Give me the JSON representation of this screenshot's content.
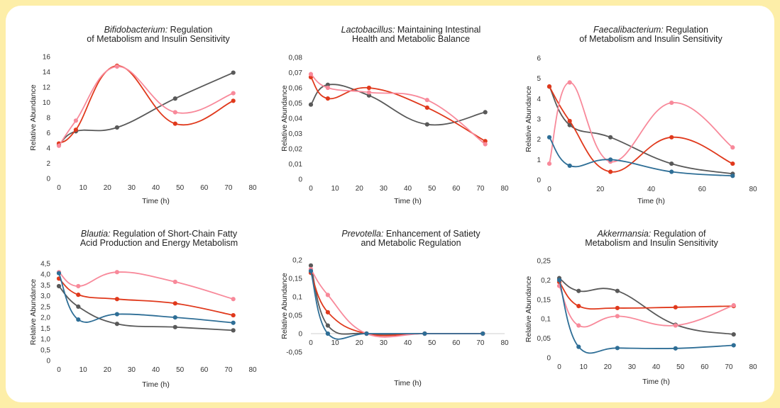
{
  "colors": {
    "gray": "#595959",
    "red": "#e0391c",
    "pink": "#f8899a",
    "blue": "#2e6e96",
    "background": "#fdeea8"
  },
  "chart_data": [
    {
      "type": "line",
      "title_italic": "Bifidobacterium:",
      "title_rest": " Regulation",
      "title_line2": "of Metabolism and Insulin Sensitivity",
      "xlabel": "Time (h)",
      "ylabel": "Relative Abundance",
      "xlim": [
        0,
        80
      ],
      "ylim": [
        0,
        16
      ],
      "xticks": [
        "0",
        "10",
        "20",
        "30",
        "40",
        "50",
        "60",
        "70",
        "80"
      ],
      "yticks": [
        "0",
        "2",
        "4",
        "6",
        "8",
        "10",
        "12",
        "14",
        "16"
      ],
      "series": [
        {
          "color": "gray",
          "x": [
            0,
            7,
            24,
            48,
            72
          ],
          "y": [
            4.4,
            6.2,
            6.7,
            10.5,
            13.9
          ]
        },
        {
          "color": "red",
          "x": [
            0,
            7,
            24,
            48,
            72
          ],
          "y": [
            4.6,
            6.4,
            14.8,
            7.2,
            10.2
          ]
        },
        {
          "color": "pink",
          "x": [
            0,
            7,
            24,
            48,
            72
          ],
          "y": [
            4.3,
            7.6,
            14.7,
            8.7,
            11.2
          ]
        }
      ]
    },
    {
      "type": "line",
      "title_italic": "Lactobacillus:",
      "title_rest": " Maintaining Intestinal",
      "title_line2": "Health and Metabolic Balance",
      "xlabel": "Time (h)",
      "ylabel": "Relative Abundance",
      "xlim": [
        0,
        80
      ],
      "ylim": [
        0,
        0.08
      ],
      "xticks": [
        "0",
        "10",
        "20",
        "30",
        "40",
        "50",
        "60",
        "70",
        "80"
      ],
      "yticks": [
        "0",
        "0,01",
        "0,02",
        "0,03",
        "0,04",
        "0,05",
        "0,06",
        "0,07",
        "0,08"
      ],
      "series": [
        {
          "color": "gray",
          "x": [
            0,
            7,
            24,
            48,
            72
          ],
          "y": [
            0.049,
            0.062,
            0.055,
            0.036,
            0.044
          ]
        },
        {
          "color": "red",
          "x": [
            0,
            7,
            24,
            48,
            72
          ],
          "y": [
            0.067,
            0.053,
            0.06,
            0.047,
            0.025
          ]
        },
        {
          "color": "pink",
          "x": [
            0,
            7,
            24,
            48,
            72
          ],
          "y": [
            0.069,
            0.06,
            0.057,
            0.052,
            0.023
          ]
        }
      ]
    },
    {
      "type": "line",
      "title_italic": "Faecalibacterium:",
      "title_rest": " Regulation",
      "title_line2": "of Metabolism and Insulin Sensitivity",
      "xlabel": "Time (h)",
      "ylabel": "Relative Abundance",
      "xlim": [
        0,
        80
      ],
      "ylim": [
        0,
        6
      ],
      "xticks": [
        "0",
        "20",
        "40",
        "60",
        "80"
      ],
      "yticks": [
        "0",
        "1",
        "2",
        "3",
        "4",
        "5",
        "6"
      ],
      "series": [
        {
          "color": "gray",
          "x": [
            0,
            8,
            24,
            48,
            72
          ],
          "y": [
            4.6,
            2.7,
            2.1,
            0.8,
            0.3
          ]
        },
        {
          "color": "red",
          "x": [
            0,
            8,
            24,
            48,
            72
          ],
          "y": [
            4.6,
            2.9,
            0.4,
            2.1,
            0.8
          ]
        },
        {
          "color": "pink",
          "x": [
            0,
            8,
            24,
            48,
            72
          ],
          "y": [
            0.8,
            4.8,
            0.9,
            3.8,
            1.6
          ]
        },
        {
          "color": "blue",
          "x": [
            0,
            8,
            24,
            48,
            72
          ],
          "y": [
            2.1,
            0.7,
            1.0,
            0.4,
            0.2
          ]
        }
      ]
    },
    {
      "type": "line",
      "title_italic": "Blautia:",
      "title_rest": " Regulation of Short-Chain Fatty",
      "title_line2": "Acid Production and Energy Metabolism",
      "xlabel": "Time (h)",
      "ylabel": "Relative Abundance",
      "xlim": [
        0,
        80
      ],
      "ylim": [
        0,
        4.5
      ],
      "xticks": [
        "0",
        "10",
        "20",
        "30",
        "40",
        "50",
        "60",
        "70",
        "80"
      ],
      "yticks": [
        "0",
        "0,5",
        "1,0",
        "1,5",
        "2,0",
        "2,5",
        "3,0",
        "3,5",
        "4,0",
        "4,5"
      ],
      "series": [
        {
          "color": "gray",
          "x": [
            0,
            8,
            24,
            48,
            72
          ],
          "y": [
            3.45,
            2.5,
            1.7,
            1.55,
            1.4
          ]
        },
        {
          "color": "red",
          "x": [
            0,
            8,
            24,
            48,
            72
          ],
          "y": [
            3.8,
            3.05,
            2.85,
            2.65,
            2.1
          ]
        },
        {
          "color": "pink",
          "x": [
            0,
            8,
            24,
            48,
            72
          ],
          "y": [
            4.1,
            3.45,
            4.1,
            3.65,
            2.85
          ]
        },
        {
          "color": "blue",
          "x": [
            0,
            8,
            24,
            48,
            72
          ],
          "y": [
            4.05,
            1.9,
            2.15,
            2.0,
            1.75
          ]
        }
      ]
    },
    {
      "type": "line",
      "title_italic": "Prevotella:",
      "title_rest": " Enhancement of Satiety",
      "title_line2": "and Metabolic Regulation",
      "xlabel": "Time (h)",
      "ylabel": "Relative Abundance",
      "xlim": [
        0,
        80
      ],
      "ylim": [
        -0.05,
        0.2
      ],
      "xticks": [
        "0",
        "10",
        "20",
        "30",
        "40",
        "50",
        "60",
        "70",
        "80"
      ],
      "yticks": [
        "-0,05",
        "0",
        "0,05",
        "0,1",
        "0,15",
        "0,2"
      ],
      "series": [
        {
          "color": "gray",
          "x": [
            0,
            7,
            23,
            47,
            71
          ],
          "y": [
            0.185,
            0.022,
            0.0,
            0.0,
            0.0
          ]
        },
        {
          "color": "red",
          "x": [
            0,
            7,
            23,
            47,
            71
          ],
          "y": [
            0.165,
            0.058,
            0.0,
            0.0,
            0.0
          ]
        },
        {
          "color": "pink",
          "x": [
            0,
            7,
            23,
            47,
            71
          ],
          "y": [
            0.175,
            0.105,
            0.0,
            0.0,
            0.0
          ]
        },
        {
          "color": "blue",
          "x": [
            0,
            7,
            23,
            47,
            71
          ],
          "y": [
            0.17,
            0.0,
            0.0,
            0.0,
            0.0
          ]
        }
      ]
    },
    {
      "type": "line",
      "title_italic": "Akkermansia:",
      "title_rest": " Regulation of",
      "title_line2": "Metabolism and Insulin Sensitivity",
      "xlabel": "Time (h)",
      "ylabel": "Relative Abundance",
      "xlim": [
        0,
        80
      ],
      "ylim": [
        0,
        0.25
      ],
      "xticks": [
        "0",
        "10",
        "20",
        "30",
        "40",
        "50",
        "60",
        "70",
        "80"
      ],
      "yticks": [
        "0",
        "0,05",
        "0,1",
        "0,15",
        "0,2",
        "0,25"
      ],
      "series": [
        {
          "color": "gray",
          "x": [
            0,
            8,
            24,
            48,
            72
          ],
          "y": [
            0.205,
            0.172,
            0.172,
            0.085,
            0.06
          ]
        },
        {
          "color": "red",
          "x": [
            0,
            8,
            24,
            48,
            72
          ],
          "y": [
            0.195,
            0.133,
            0.128,
            0.13,
            0.133
          ]
        },
        {
          "color": "pink",
          "x": [
            0,
            8,
            24,
            48,
            72
          ],
          "y": [
            0.185,
            0.083,
            0.107,
            0.083,
            0.135
          ]
        },
        {
          "color": "blue",
          "x": [
            0,
            8,
            24,
            48,
            72
          ],
          "y": [
            0.2,
            0.028,
            0.025,
            0.024,
            0.032
          ]
        }
      ]
    }
  ]
}
